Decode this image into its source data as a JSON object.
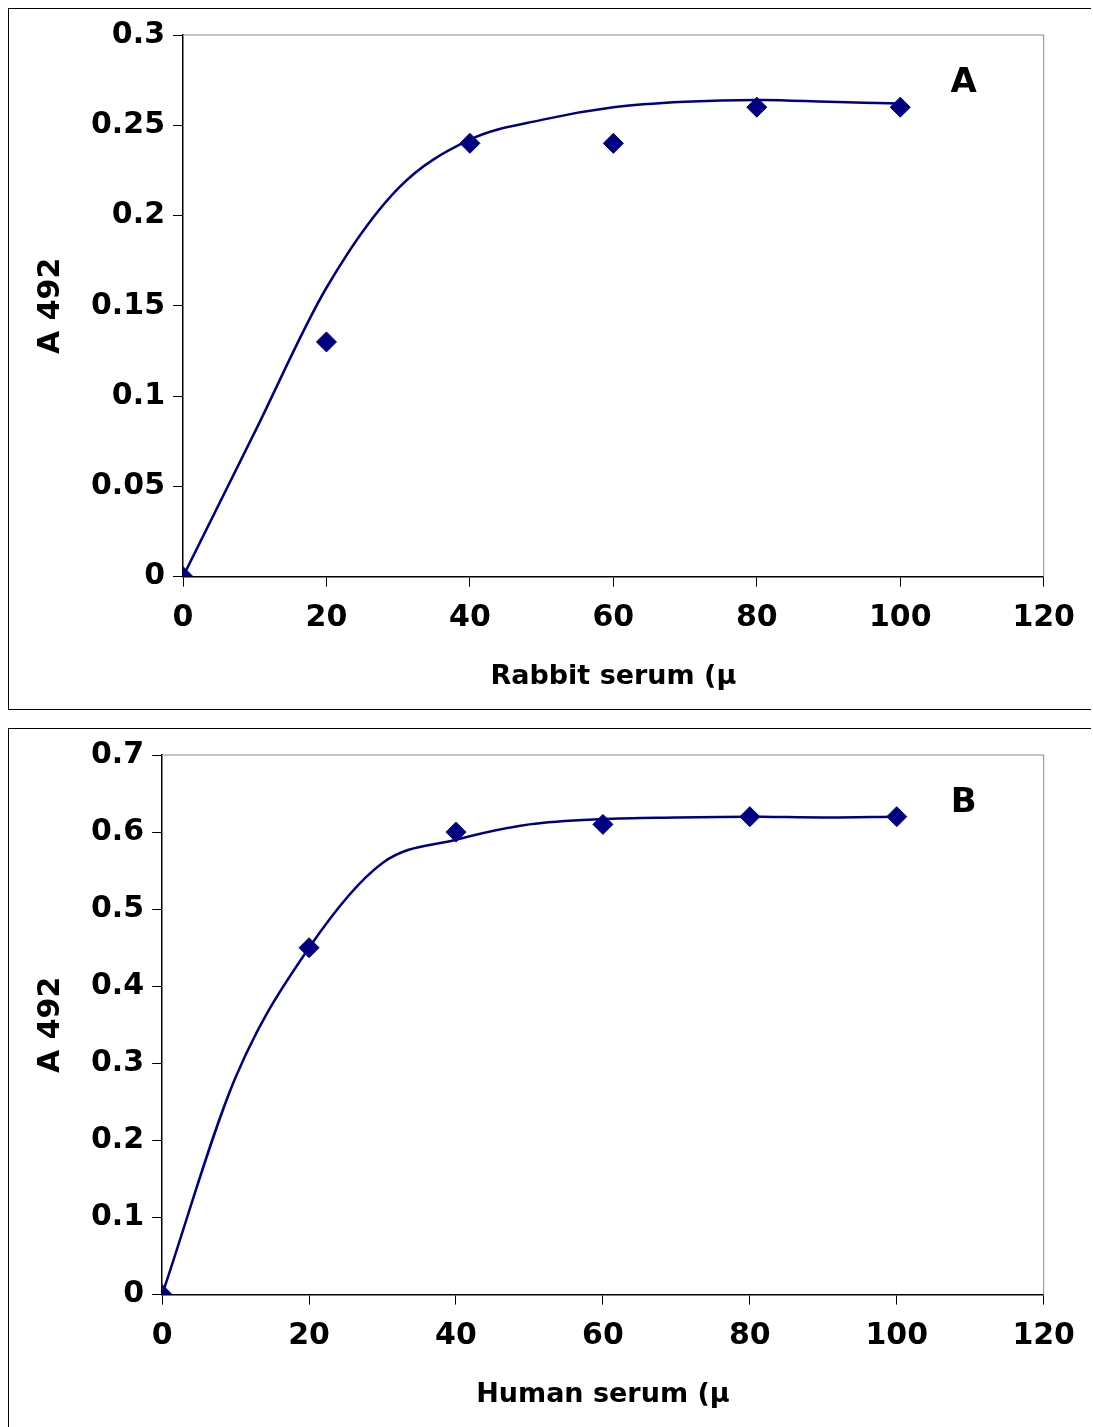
{
  "chart_data": [
    {
      "type": "scatter",
      "xlabel": "Rabbit serum (µ",
      "ylabel": "A 492",
      "annotations": [
        "A"
      ],
      "x": [
        0,
        20,
        40,
        60,
        80,
        100
      ],
      "series": [
        {
          "color": "#000080",
          "values": [
            0,
            0.13,
            0.24,
            0.24,
            0.26,
            0.26
          ],
          "marker": "diamond"
        },
        {
          "type": "line",
          "color": "#000080",
          "x": [
            0,
            10,
            20,
            30,
            40,
            50,
            60,
            70,
            80,
            90,
            100
          ],
          "values": [
            0,
            0.08,
            0.16,
            0.215,
            0.242,
            0.253,
            0.26,
            0.263,
            0.264,
            0.263,
            0.262
          ]
        }
      ],
      "xlim": [
        0,
        120
      ],
      "xticks": [
        0,
        20,
        40,
        60,
        80,
        100,
        120
      ],
      "ylim": [
        0,
        0.3
      ],
      "yticks": [
        0,
        0.05,
        0.1,
        0.15,
        0.2,
        0.25,
        0.3
      ],
      "grid": false,
      "legend": false
    },
    {
      "type": "scatter",
      "xlabel": "Human serum (µ",
      "ylabel": "A 492",
      "annotations": [
        "B"
      ],
      "x": [
        0,
        20,
        40,
        60,
        80,
        100
      ],
      "series": [
        {
          "color": "#000080",
          "values": [
            0,
            0.45,
            0.6,
            0.61,
            0.62,
            0.62
          ],
          "marker": "diamond"
        },
        {
          "type": "line",
          "color": "#000080",
          "x": [
            0,
            10,
            20,
            30,
            40,
            50,
            60,
            70,
            80,
            90,
            100
          ],
          "values": [
            0,
            0.282,
            0.45,
            0.56,
            0.59,
            0.61,
            0.617,
            0.619,
            0.62,
            0.619,
            0.62
          ]
        }
      ],
      "xlim": [
        0,
        120
      ],
      "xticks": [
        0,
        20,
        40,
        60,
        80,
        100,
        120
      ],
      "ylim": [
        0,
        0.7
      ],
      "yticks": [
        0,
        0.1,
        0.2,
        0.3,
        0.4,
        0.5,
        0.6,
        0.7
      ],
      "grid": false,
      "legend": false
    }
  ]
}
